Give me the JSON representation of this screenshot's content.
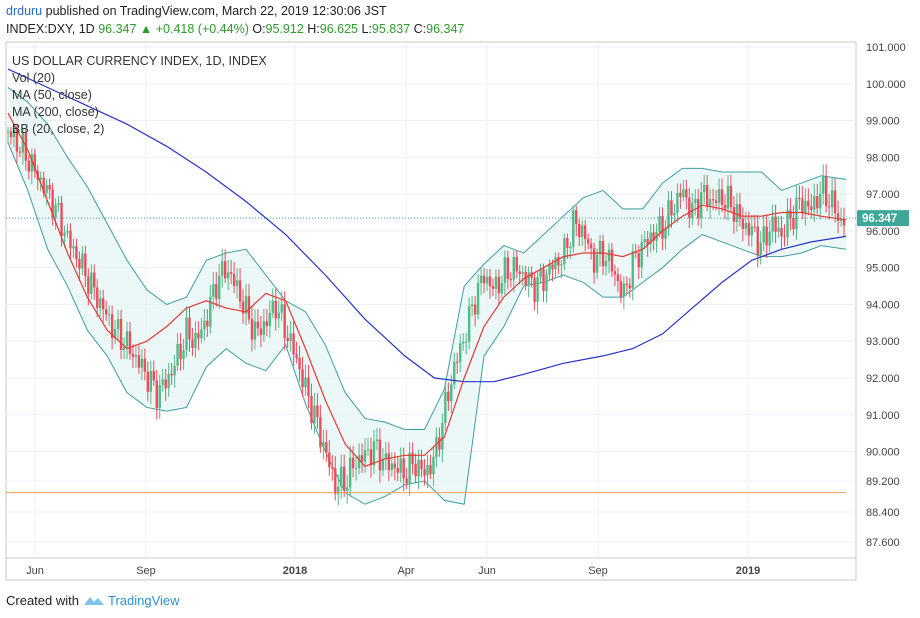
{
  "header": {
    "user": "drduru",
    "published": "published on TradingView.com, March 22, 2019 12:30:06 JST",
    "symbol": "INDEX:DXY, 1D",
    "change": "96.347 ▲ +0.418 (+0.44%)",
    "o_label": "O:",
    "o_value": "95.912",
    "h_label": "H:",
    "h_value": "96.625",
    "l_label": "L:",
    "l_value": "95.837",
    "c_label": "C:",
    "c_value": "96.347"
  },
  "legend": {
    "title": "US DOLLAR CURRENCY INDEX, 1D, INDEX",
    "items": [
      "Vol (20)",
      "MA (50, close)",
      "MA (200, close)",
      "BB (20, close, 2)"
    ]
  },
  "footer": {
    "prefix": "Created with",
    "brand": "TradingView"
  },
  "colors": {
    "up": "#53b987",
    "down": "#eb4d5c",
    "ma50": "#e53935",
    "ma200": "#2733c8",
    "bb": "#3f9ea0",
    "support": "#f0a060",
    "price_label": "#3fa69a"
  },
  "chart_data": {
    "type": "candlestick",
    "title": "US DOLLAR CURRENCY INDEX, 1D, INDEX",
    "y_ticks": [
      "101.000",
      "100.000",
      "99.000",
      "98.000",
      "97.000",
      "96.000",
      "95.000",
      "94.000",
      "93.000",
      "92.000",
      "91.000",
      "90.000",
      "89.200",
      "88.400",
      "87.600"
    ],
    "x_ticks": [
      "Jun",
      "Sep",
      "2018",
      "Apr",
      "Jun",
      "Sep",
      "2019"
    ],
    "last_price_label": "96.347",
    "last_price": 96.347,
    "support_level": 88.9,
    "ma50": [
      [
        0,
        99.2
      ],
      [
        20,
        98.2
      ],
      [
        40,
        96.8
      ],
      [
        60,
        95.4
      ],
      [
        80,
        94.2
      ],
      [
        100,
        93.3
      ],
      [
        120,
        92.8
      ],
      [
        140,
        93.0
      ],
      [
        160,
        93.4
      ],
      [
        180,
        93.9
      ],
      [
        200,
        94.1
      ],
      [
        220,
        93.9
      ],
      [
        240,
        93.8
      ],
      [
        260,
        94.3
      ],
      [
        280,
        94.1
      ],
      [
        300,
        92.8
      ],
      [
        320,
        91.4
      ],
      [
        340,
        90.2
      ],
      [
        360,
        89.6
      ],
      [
        380,
        89.8
      ],
      [
        400,
        89.9
      ],
      [
        420,
        89.9
      ],
      [
        440,
        90.4
      ],
      [
        460,
        92.0
      ],
      [
        480,
        93.4
      ],
      [
        500,
        94.2
      ],
      [
        520,
        94.7
      ],
      [
        540,
        95.0
      ],
      [
        560,
        95.3
      ],
      [
        580,
        95.4
      ],
      [
        600,
        95.4
      ],
      [
        620,
        95.3
      ],
      [
        640,
        95.5
      ],
      [
        660,
        96.0
      ],
      [
        680,
        96.4
      ],
      [
        700,
        96.7
      ],
      [
        720,
        96.6
      ],
      [
        740,
        96.4
      ],
      [
        760,
        96.4
      ],
      [
        780,
        96.5
      ],
      [
        800,
        96.5
      ],
      [
        820,
        96.4
      ],
      [
        845,
        96.3
      ]
    ],
    "ma200": [
      [
        0,
        100.4
      ],
      [
        40,
        99.9
      ],
      [
        80,
        99.4
      ],
      [
        120,
        98.9
      ],
      [
        160,
        98.3
      ],
      [
        200,
        97.6
      ],
      [
        240,
        96.8
      ],
      [
        280,
        95.9
      ],
      [
        320,
        94.8
      ],
      [
        360,
        93.6
      ],
      [
        400,
        92.6
      ],
      [
        430,
        92.0
      ],
      [
        460,
        91.9
      ],
      [
        490,
        91.9
      ],
      [
        520,
        92.1
      ],
      [
        560,
        92.4
      ],
      [
        600,
        92.6
      ],
      [
        630,
        92.8
      ],
      [
        660,
        93.2
      ],
      [
        690,
        93.9
      ],
      [
        720,
        94.6
      ],
      [
        750,
        95.2
      ],
      [
        780,
        95.5
      ],
      [
        810,
        95.7
      ],
      [
        845,
        95.85
      ]
    ],
    "bb_upper": [
      [
        0,
        99.9
      ],
      [
        20,
        99.5
      ],
      [
        40,
        98.9
      ],
      [
        60,
        98.0
      ],
      [
        80,
        97.2
      ],
      [
        100,
        96.2
      ],
      [
        120,
        95.2
      ],
      [
        140,
        94.4
      ],
      [
        160,
        94.0
      ],
      [
        180,
        94.2
      ],
      [
        200,
        95.2
      ],
      [
        220,
        95.4
      ],
      [
        240,
        95.5
      ],
      [
        260,
        94.8
      ],
      [
        280,
        94.1
      ],
      [
        300,
        93.8
      ],
      [
        320,
        92.9
      ],
      [
        340,
        91.6
      ],
      [
        360,
        90.9
      ],
      [
        380,
        90.8
      ],
      [
        400,
        90.6
      ],
      [
        420,
        90.6
      ],
      [
        440,
        91.7
      ],
      [
        460,
        94.5
      ],
      [
        480,
        95.1
      ],
      [
        500,
        95.6
      ],
      [
        520,
        95.4
      ],
      [
        540,
        95.9
      ],
      [
        560,
        96.4
      ],
      [
        580,
        96.9
      ],
      [
        600,
        97.1
      ],
      [
        620,
        96.6
      ],
      [
        640,
        96.6
      ],
      [
        660,
        97.3
      ],
      [
        680,
        97.7
      ],
      [
        700,
        97.7
      ],
      [
        720,
        97.6
      ],
      [
        740,
        97.6
      ],
      [
        760,
        97.6
      ],
      [
        780,
        97.1
      ],
      [
        800,
        97.3
      ],
      [
        820,
        97.5
      ],
      [
        845,
        97.4
      ]
    ],
    "bb_lower": [
      [
        0,
        98.4
      ],
      [
        20,
        97.1
      ],
      [
        40,
        95.5
      ],
      [
        60,
        94.5
      ],
      [
        80,
        93.3
      ],
      [
        100,
        92.6
      ],
      [
        120,
        91.6
      ],
      [
        140,
        91.2
      ],
      [
        160,
        91.1
      ],
      [
        180,
        91.2
      ],
      [
        200,
        92.3
      ],
      [
        220,
        92.8
      ],
      [
        240,
        92.4
      ],
      [
        260,
        92.2
      ],
      [
        280,
        92.9
      ],
      [
        300,
        91.3
      ],
      [
        320,
        90.0
      ],
      [
        340,
        88.9
      ],
      [
        360,
        88.6
      ],
      [
        380,
        88.8
      ],
      [
        400,
        89.1
      ],
      [
        420,
        89.2
      ],
      [
        440,
        88.7
      ],
      [
        460,
        88.6
      ],
      [
        480,
        92.6
      ],
      [
        500,
        93.4
      ],
      [
        520,
        94.5
      ],
      [
        540,
        94.6
      ],
      [
        560,
        94.8
      ],
      [
        580,
        94.6
      ],
      [
        600,
        94.2
      ],
      [
        620,
        94.2
      ],
      [
        640,
        94.6
      ],
      [
        660,
        95.0
      ],
      [
        680,
        95.5
      ],
      [
        700,
        95.9
      ],
      [
        720,
        95.7
      ],
      [
        740,
        95.5
      ],
      [
        760,
        95.3
      ],
      [
        780,
        95.3
      ],
      [
        800,
        95.4
      ],
      [
        820,
        95.6
      ],
      [
        845,
        95.5
      ]
    ],
    "close": [
      [
        0,
        98.7
      ],
      [
        15,
        98.2
      ],
      [
        30,
        97.5
      ],
      [
        45,
        96.8
      ],
      [
        60,
        95.8
      ],
      [
        75,
        95.0
      ],
      [
        90,
        94.2
      ],
      [
        105,
        93.4
      ],
      [
        120,
        92.9
      ],
      [
        135,
        92.3
      ],
      [
        150,
        91.6
      ],
      [
        160,
        91.9
      ],
      [
        170,
        92.5
      ],
      [
        180,
        93.2
      ],
      [
        190,
        93.0
      ],
      [
        200,
        93.6
      ],
      [
        210,
        94.6
      ],
      [
        220,
        95.0
      ],
      [
        230,
        94.5
      ],
      [
        240,
        93.8
      ],
      [
        250,
        93.2
      ],
      [
        260,
        93.5
      ],
      [
        270,
        94.0
      ],
      [
        280,
        93.3
      ],
      [
        290,
        92.6
      ],
      [
        300,
        91.7
      ],
      [
        310,
        90.9
      ],
      [
        320,
        90.0
      ],
      [
        330,
        89.1
      ],
      [
        340,
        89.2
      ],
      [
        350,
        89.7
      ],
      [
        360,
        89.9
      ],
      [
        370,
        90.1
      ],
      [
        380,
        89.7
      ],
      [
        390,
        89.6
      ],
      [
        400,
        89.4
      ],
      [
        410,
        89.7
      ],
      [
        420,
        89.4
      ],
      [
        430,
        89.8
      ],
      [
        440,
        91.1
      ],
      [
        450,
        92.3
      ],
      [
        460,
        93.1
      ],
      [
        470,
        94.1
      ],
      [
        480,
        94.8
      ],
      [
        490,
        94.4
      ],
      [
        500,
        94.8
      ],
      [
        510,
        95.0
      ],
      [
        520,
        94.8
      ],
      [
        530,
        94.5
      ],
      [
        540,
        94.7
      ],
      [
        550,
        95.1
      ],
      [
        560,
        95.3
      ],
      [
        570,
        96.2
      ],
      [
        580,
        96.0
      ],
      [
        590,
        95.2
      ],
      [
        600,
        95.4
      ],
      [
        610,
        95.0
      ],
      [
        620,
        94.2
      ],
      [
        630,
        95.1
      ],
      [
        640,
        95.6
      ],
      [
        650,
        95.9
      ],
      [
        660,
        96.1
      ],
      [
        670,
        96.6
      ],
      [
        680,
        97.1
      ],
      [
        690,
        96.5
      ],
      [
        700,
        97.0
      ],
      [
        710,
        96.8
      ],
      [
        720,
        96.9
      ],
      [
        730,
        96.7
      ],
      [
        740,
        96.2
      ],
      [
        750,
        96.0
      ],
      [
        760,
        95.6
      ],
      [
        770,
        96.2
      ],
      [
        780,
        95.9
      ],
      [
        790,
        96.4
      ],
      [
        800,
        96.8
      ],
      [
        810,
        96.6
      ],
      [
        820,
        97.1
      ],
      [
        830,
        96.8
      ],
      [
        840,
        96.2
      ],
      [
        845,
        96.347
      ]
    ]
  }
}
